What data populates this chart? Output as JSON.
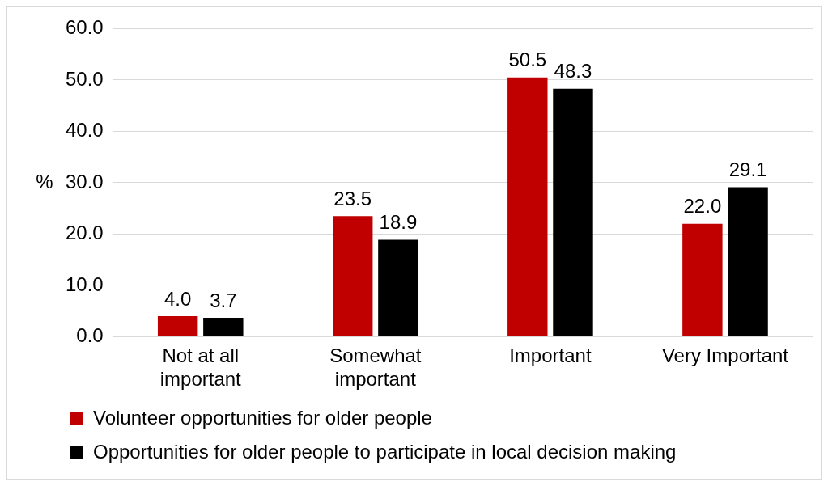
{
  "chart_data": {
    "type": "bar",
    "ylabel": "%",
    "categories": [
      "Not at all important",
      "Somewhat important",
      "Important",
      "Very Important"
    ],
    "series": [
      {
        "name": "Volunteer opportunities for older people",
        "color": "#c00000",
        "values": [
          4.0,
          23.5,
          50.5,
          22.0
        ],
        "value_labels": [
          "4.0",
          "23.5",
          "50.5",
          "22.0"
        ]
      },
      {
        "name": "Opportunities for older people to participate in local decision making",
        "color": "#000000",
        "values": [
          3.7,
          18.9,
          48.3,
          29.1
        ],
        "value_labels": [
          "3.7",
          "18.9",
          "48.3",
          "29.1"
        ]
      }
    ],
    "ylim": [
      0,
      60
    ],
    "yticks": [
      {
        "value": 0,
        "label": "0.0"
      },
      {
        "value": 10,
        "label": "10.0"
      },
      {
        "value": 20,
        "label": "20.0"
      },
      {
        "value": 30,
        "label": "30.0"
      },
      {
        "value": 40,
        "label": "40.0"
      },
      {
        "value": 50,
        "label": "50.0"
      },
      {
        "value": 60,
        "label": "60.0"
      }
    ],
    "grid": "y",
    "legend": "bottom"
  }
}
